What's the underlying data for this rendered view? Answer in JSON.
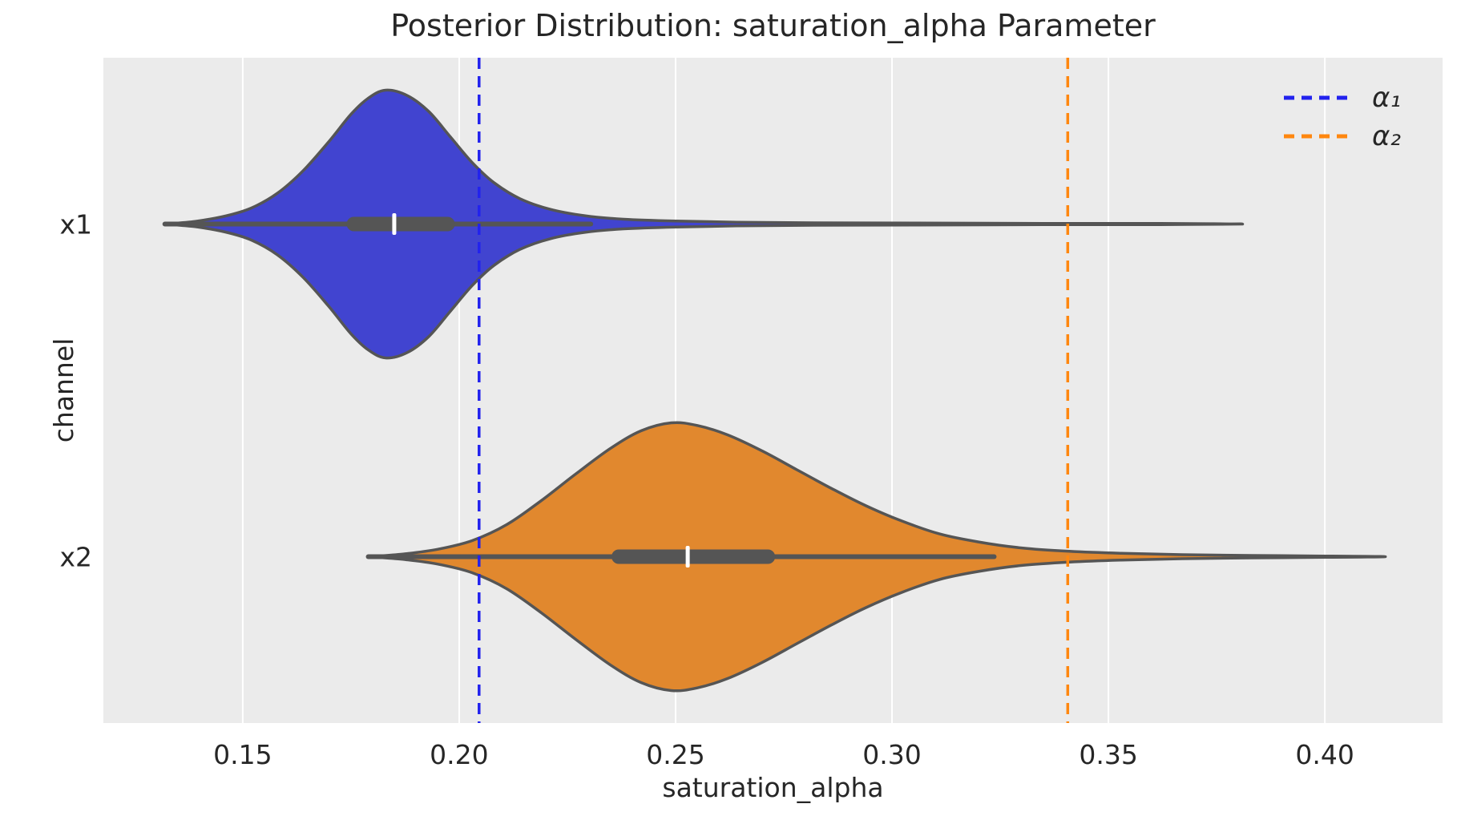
{
  "title": "Posterior Distribution: saturation_alpha Parameter",
  "axes": {
    "xlabel": "saturation_alpha",
    "ylabel": "channel",
    "x_tick_labels": [
      "0.15",
      "0.20",
      "0.25",
      "0.30",
      "0.35",
      "0.40"
    ],
    "y_categories": [
      "x1",
      "x2"
    ]
  },
  "legend": [
    {
      "label": "α₁",
      "color": "#2222ee",
      "style": "dashed"
    },
    {
      "label": "α₂",
      "color": "#ff870f",
      "style": "dashed"
    }
  ],
  "colors": {
    "plot_background": "#ebebeb",
    "gridline": "#ffffff",
    "violin_outline": "#555555",
    "box": "#555555",
    "median_tick": "#ffffff",
    "text": "#262626",
    "violin_fill_x1": "#4144d0",
    "violin_fill_x2": "#e1882e"
  },
  "chart_data": {
    "type": "violin",
    "orientation": "horizontal",
    "title": "Posterior Distribution: saturation_alpha Parameter",
    "xlabel": "saturation_alpha",
    "ylabel": "channel",
    "x_axis": {
      "ticks": [
        0.15,
        0.2,
        0.25,
        0.3,
        0.35,
        0.4
      ],
      "range": [
        0.1178,
        0.4272
      ],
      "grid": true
    },
    "y_axis": {
      "categories": [
        "x1",
        "x2"
      ]
    },
    "reference_lines": [
      {
        "label": "α₁",
        "value": 0.2046,
        "color": "#2222ee",
        "style": "dashed"
      },
      {
        "label": "α₂",
        "value": 0.3406,
        "color": "#ff870f",
        "style": "dashed"
      }
    ],
    "violins": [
      {
        "channel": "x1",
        "fill": "#4144d0",
        "median": 0.185,
        "q1": 0.174,
        "q3": 0.199,
        "whisker_low": 0.132,
        "whisker_high": 0.2304,
        "tail_min": 0.132,
        "tail_max": 0.381,
        "mode": 0.183,
        "density": [
          [
            0.132,
            0.0
          ],
          [
            0.139,
            0.02
          ],
          [
            0.146,
            0.06
          ],
          [
            0.152,
            0.12
          ],
          [
            0.158,
            0.23
          ],
          [
            0.164,
            0.4
          ],
          [
            0.17,
            0.62
          ],
          [
            0.175,
            0.82
          ],
          [
            0.179,
            0.94
          ],
          [
            0.183,
            1.0
          ],
          [
            0.188,
            0.96
          ],
          [
            0.193,
            0.84
          ],
          [
            0.198,
            0.65
          ],
          [
            0.203,
            0.46
          ],
          [
            0.208,
            0.31
          ],
          [
            0.214,
            0.19
          ],
          [
            0.221,
            0.11
          ],
          [
            0.229,
            0.062
          ],
          [
            0.238,
            0.036
          ],
          [
            0.25,
            0.022
          ],
          [
            0.264,
            0.014
          ],
          [
            0.282,
            0.009
          ],
          [
            0.305,
            0.007
          ],
          [
            0.335,
            0.005
          ],
          [
            0.362,
            0.004
          ],
          [
            0.381,
            0.0
          ]
        ]
      },
      {
        "channel": "x2",
        "fill": "#e1882e",
        "median": 0.2528,
        "q1": 0.2352,
        "q3": 0.273,
        "whisker_low": 0.179,
        "whisker_high": 0.3236,
        "tail_min": 0.179,
        "tail_max": 0.414,
        "mode": 0.249,
        "density": [
          [
            0.179,
            0.0
          ],
          [
            0.187,
            0.02
          ],
          [
            0.195,
            0.055
          ],
          [
            0.203,
            0.12
          ],
          [
            0.211,
            0.24
          ],
          [
            0.219,
            0.42
          ],
          [
            0.227,
            0.62
          ],
          [
            0.235,
            0.81
          ],
          [
            0.242,
            0.94
          ],
          [
            0.249,
            1.0
          ],
          [
            0.255,
            0.98
          ],
          [
            0.262,
            0.91
          ],
          [
            0.27,
            0.79
          ],
          [
            0.278,
            0.65
          ],
          [
            0.286,
            0.51
          ],
          [
            0.294,
            0.38
          ],
          [
            0.302,
            0.27
          ],
          [
            0.311,
            0.17
          ],
          [
            0.32,
            0.11
          ],
          [
            0.33,
            0.065
          ],
          [
            0.341,
            0.04
          ],
          [
            0.353,
            0.025
          ],
          [
            0.367,
            0.015
          ],
          [
            0.383,
            0.009
          ],
          [
            0.4,
            0.005
          ],
          [
            0.414,
            0.0
          ]
        ]
      }
    ]
  }
}
